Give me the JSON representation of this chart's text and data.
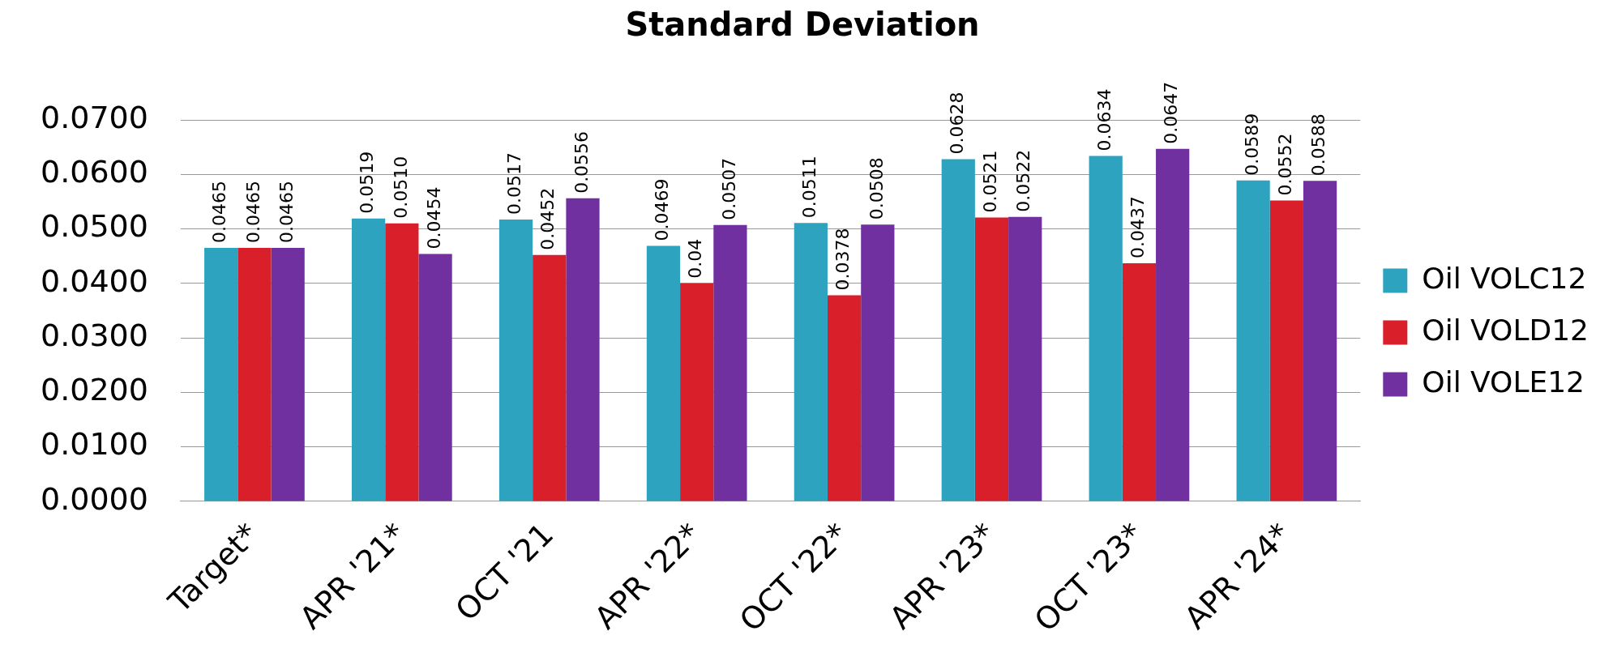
{
  "chart_data": {
    "type": "bar",
    "title": "Standard Deviation",
    "categories": [
      "Target*",
      "APR '21*",
      "OCT '21",
      "APR '22*",
      "OCT '22*",
      "APR '23*",
      "OCT '23*",
      "APR '24*"
    ],
    "series": [
      {
        "name": "Oil VOLC12",
        "color": "#2ea3c0",
        "values": [
          0.0465,
          0.0519,
          0.0517,
          0.0469,
          0.0511,
          0.0628,
          0.0634,
          0.0589
        ],
        "value_labels": [
          "0.0465",
          "0.0519",
          "0.0517",
          "0.0469",
          "0.0511",
          "0.0628",
          "0.0634",
          "0.0589"
        ]
      },
      {
        "name": "Oil VOLD12",
        "color": "#d9202a",
        "values": [
          0.0465,
          0.051,
          0.0452,
          0.04,
          0.0378,
          0.0521,
          0.0437,
          0.0552
        ],
        "value_labels": [
          "0.0465",
          "0.0510",
          "0.0452",
          "0.04",
          "0.0378",
          "0.0521",
          "0.0437",
          "0.0552"
        ]
      },
      {
        "name": "Oil VOLE12",
        "color": "#7030a0",
        "values": [
          0.0465,
          0.0454,
          0.0556,
          0.0507,
          0.0508,
          0.0522,
          0.0647,
          0.0588
        ],
        "value_labels": [
          "0.0465",
          "0.0454",
          "0.0556",
          "0.0507",
          "0.0508",
          "0.0522",
          "0.0647",
          "0.0588"
        ]
      }
    ],
    "ylim": [
      0,
      0.07
    ],
    "yticks": [
      {
        "value": 0,
        "label": "0.0000"
      },
      {
        "value": 0.01,
        "label": "0.0100"
      },
      {
        "value": 0.02,
        "label": "0.0200"
      },
      {
        "value": 0.03,
        "label": "0.0300"
      },
      {
        "value": 0.04,
        "label": "0.0400"
      },
      {
        "value": 0.05,
        "label": "0.0500"
      },
      {
        "value": 0.06,
        "label": "0.0600"
      },
      {
        "value": 0.07,
        "label": "0.0700"
      }
    ],
    "grid": "y",
    "legend": "right"
  }
}
